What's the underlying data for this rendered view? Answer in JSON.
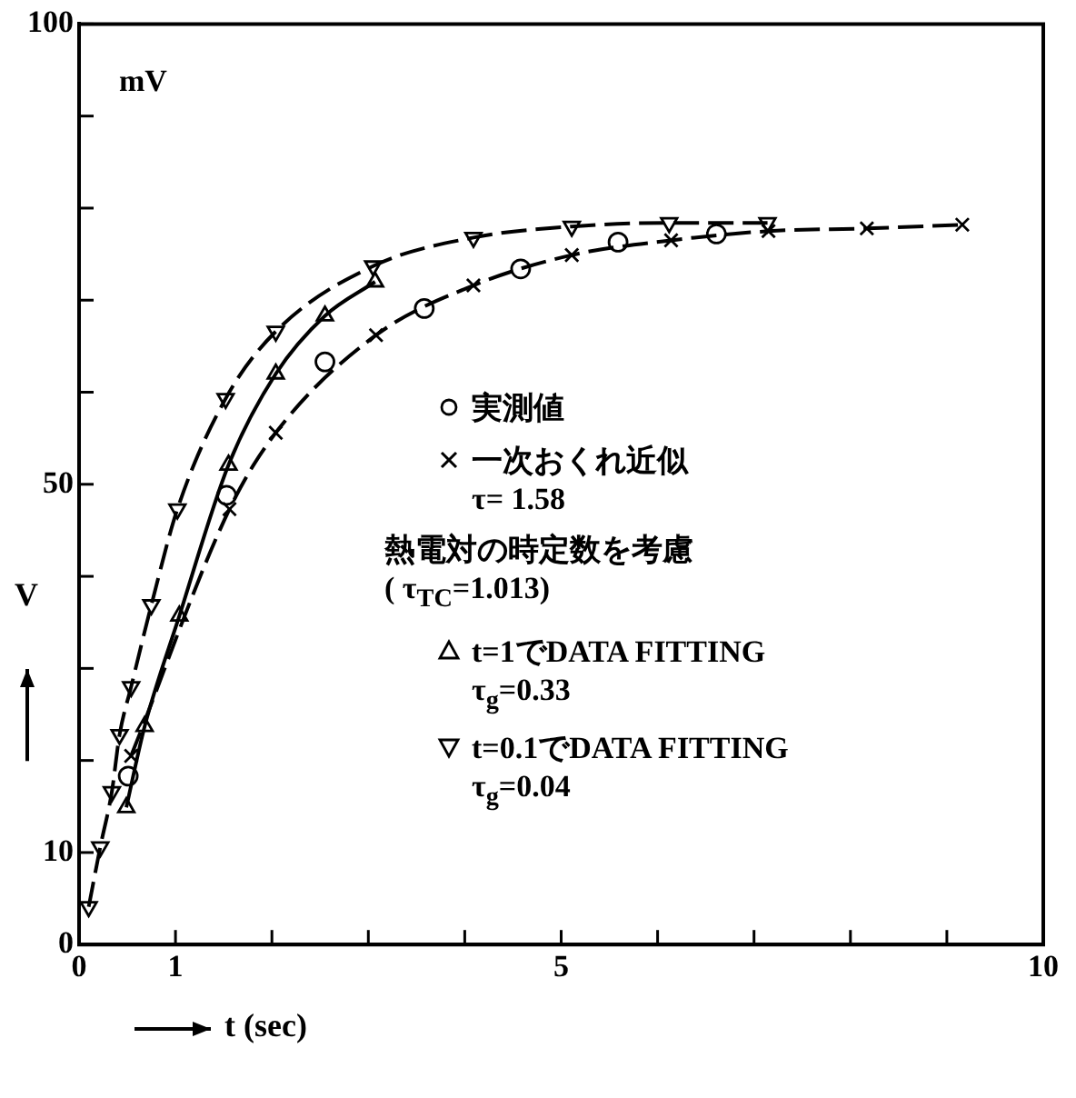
{
  "chart_data": {
    "type": "line",
    "xlabel": "t (sec)",
    "ylabel": "V",
    "annotations": [
      "mV",
      "熱電対の時定数を考慮\n( τ$_{TC}$=1.013)"
    ],
    "xlim": [
      0,
      10
    ],
    "ylim": [
      0,
      100
    ],
    "xticks": [
      0,
      1,
      {
        "value": 2,
        "label": null
      },
      {
        "value": 3,
        "label": null
      },
      {
        "value": 4,
        "label": null
      },
      5,
      {
        "value": 6,
        "label": null
      },
      {
        "value": 7,
        "label": null
      },
      {
        "value": 8,
        "label": null
      },
      {
        "value": 9,
        "label": null
      },
      10
    ],
    "yticks": [
      0,
      10,
      {
        "value": 20,
        "label": null
      },
      {
        "value": 30,
        "label": null
      },
      {
        "value": 40,
        "label": null
      },
      50,
      {
        "value": 60,
        "label": null
      },
      {
        "value": 70,
        "label": null
      },
      {
        "value": 80,
        "label": null
      },
      {
        "value": 90,
        "label": null
      },
      100
    ],
    "grid": false,
    "legend": "right",
    "series": [
      {
        "name": "実測値",
        "type": "scatter",
        "marker": "circle",
        "color": "#000000",
        "x": [
          0.51,
          1.53,
          2.55,
          3.58,
          4.58,
          5.59,
          6.61
        ],
        "values": [
          18.3,
          48.8,
          63.3,
          69.1,
          73.4,
          76.3,
          77.2
        ]
      },
      {
        "name": "一次おくれ近似\nτ= 1.58",
        "type": "line",
        "marker": "cross",
        "line_style": "dashed",
        "color": "#000000",
        "x": [
          0.54,
          1.56,
          2.04,
          3.08,
          4.09,
          5.11,
          6.14,
          7.15,
          8.17,
          9.16
        ],
        "values": [
          20.5,
          47.3,
          55.6,
          66.2,
          71.6,
          74.9,
          76.5,
          77.5,
          77.8,
          78.2
        ]
      },
      {
        "name": "t=1でDATA FITTING\nτ$_{g}$=0.33",
        "type": "line",
        "marker": "triangle",
        "line_style": "solid",
        "color": "#000000",
        "x": [
          0.49,
          0.68,
          1.04,
          1.55,
          2.04,
          2.55,
          3.07
        ],
        "values": [
          14.9,
          23.7,
          35.7,
          52.1,
          62.0,
          68.3,
          72.0
        ]
      },
      {
        "name": "t=0.1でDATA FITTING\nτ$_{g}$=0.04",
        "type": "line",
        "marker": "triangle-down",
        "line_style": "dashed",
        "color": "#000000",
        "x": [
          0.1,
          0.22,
          0.34,
          0.42,
          0.54,
          0.75,
          1.02,
          1.52,
          2.04,
          3.05,
          4.09,
          5.11,
          6.12,
          7.14
        ],
        "values": [
          4.1,
          10.6,
          16.6,
          22.8,
          28.0,
          36.9,
          47.3,
          59.3,
          66.6,
          73.7,
          76.8,
          78.0,
          78.4,
          78.4
        ]
      }
    ]
  }
}
